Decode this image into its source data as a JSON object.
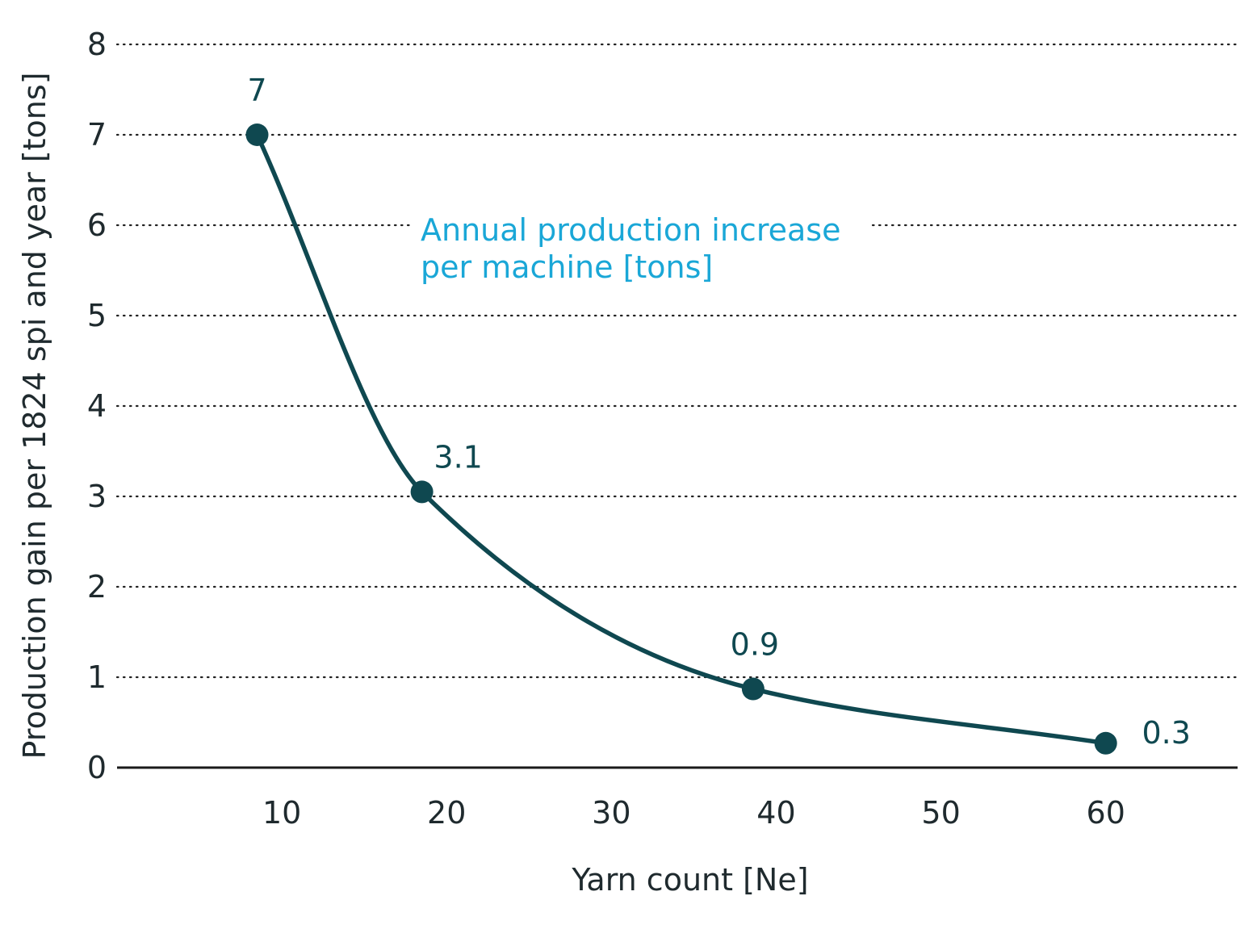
{
  "chart_data": {
    "type": "line",
    "title": "",
    "xlabel": "Yarn count [Ne]",
    "ylabel": "Production gain per 1824 spi and year [tons]",
    "xlim": [
      0,
      68
    ],
    "ylim": [
      0,
      8
    ],
    "x_ticks": [
      10,
      20,
      30,
      40,
      50,
      60
    ],
    "x_tick_labels": [
      "10",
      "20",
      "30",
      "40",
      "50",
      "60"
    ],
    "y_ticks": [
      0,
      1,
      2,
      3,
      4,
      5,
      6,
      7,
      8
    ],
    "y_tick_labels": [
      "0",
      "1",
      "2",
      "3",
      "4",
      "5",
      "6",
      "7",
      "8"
    ],
    "grid": "horizontal dotted",
    "series": [
      {
        "x": [
          8.5,
          18.5,
          38.6,
          60
        ],
        "values": [
          7,
          3.05,
          0.87,
          0.27
        ],
        "data_labels": [
          "7",
          "3.1",
          "0.9",
          "0.3"
        ]
      }
    ],
    "annotation": [
      "Annual production increase",
      "per machine [tons]"
    ],
    "colors": {
      "line": "#0f4850",
      "annotation": "#1aa7d7",
      "text": "#1f2a2e",
      "grid": "#222222"
    }
  }
}
